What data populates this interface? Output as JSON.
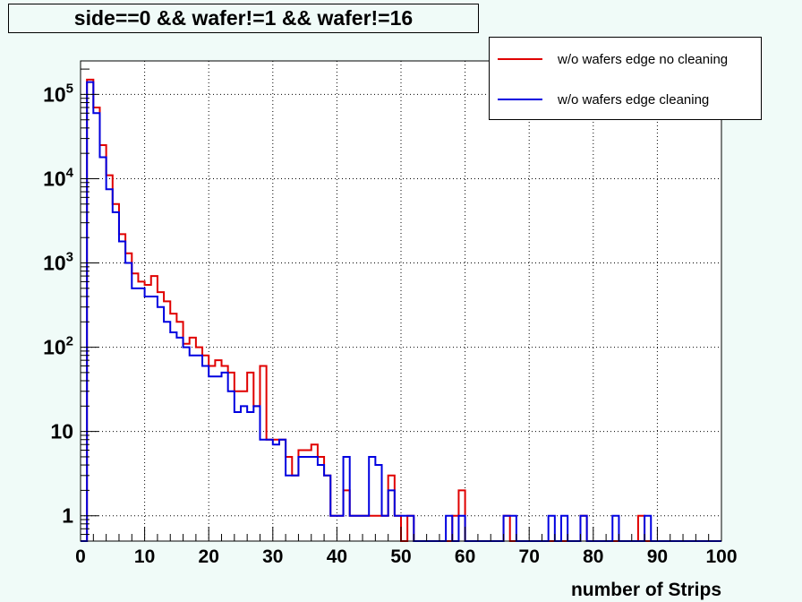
{
  "title": "side==0 && wafer!=1 && wafer!=16",
  "legend": {
    "entries": [
      {
        "label": "w/o wafers edge no cleaning",
        "color": "#e00000"
      },
      {
        "label": "w/o wafers edge cleaning",
        "color": "#0000e0"
      }
    ]
  },
  "chart_data": {
    "type": "line",
    "title": "side==0 && wafer!=1 && wafer!=16",
    "xlabel": "number of Strips",
    "ylabel": "",
    "xlim": [
      0,
      100
    ],
    "ylim": [
      0.5,
      250000
    ],
    "yscale": "log",
    "grid": true,
    "legend_position": "top-right",
    "x_ticks": [
      0,
      10,
      20,
      30,
      40,
      50,
      60,
      70,
      80,
      90,
      100
    ],
    "x_tick_labels": [
      "0",
      "10",
      "20",
      "30",
      "40",
      "50",
      "60",
      "70",
      "80",
      "90",
      "100"
    ],
    "y_ticks": [
      {
        "value": 1,
        "base": "1",
        "exp": ""
      },
      {
        "value": 10,
        "base": "10",
        "exp": ""
      },
      {
        "value": 100,
        "base": "10",
        "exp": "2"
      },
      {
        "value": 1000,
        "base": "10",
        "exp": "3"
      },
      {
        "value": 10000,
        "base": "10",
        "exp": "4"
      },
      {
        "value": 100000,
        "base": "10",
        "exp": "5"
      }
    ],
    "bin_edges": [
      0,
      1,
      2,
      3,
      4,
      5,
      6,
      7,
      8,
      9,
      10,
      11,
      12,
      13,
      14,
      15,
      16,
      17,
      18,
      19,
      20,
      21,
      22,
      23,
      24,
      25,
      26,
      27,
      28,
      29,
      30,
      31,
      32,
      33,
      34,
      35,
      36,
      37,
      38,
      39,
      40,
      41,
      42,
      43,
      44,
      45,
      46,
      47,
      48,
      49,
      50,
      51,
      52,
      53,
      54,
      55,
      56,
      57,
      58,
      59,
      60,
      61,
      62,
      63,
      64,
      65,
      66,
      67,
      68,
      69,
      70,
      71,
      72,
      73,
      74,
      75,
      76,
      77,
      78,
      79,
      80,
      81,
      82,
      83,
      84,
      85,
      86,
      87,
      88,
      89,
      90,
      91,
      92,
      93,
      94,
      95,
      96,
      97,
      98,
      99,
      100
    ],
    "series": [
      {
        "name": "w/o wafers edge no cleaning",
        "color": "#e00000",
        "values": [
          0,
          150000,
          70000,
          25000,
          11000,
          5000,
          2200,
          1300,
          750,
          600,
          550,
          700,
          450,
          350,
          250,
          200,
          110,
          130,
          100,
          80,
          60,
          70,
          60,
          50,
          30,
          30,
          50,
          20,
          60,
          8,
          8,
          8,
          5,
          3,
          6,
          6,
          7,
          5,
          3,
          1,
          1,
          2,
          1,
          1,
          1,
          1,
          1,
          1,
          3,
          1,
          0,
          1,
          0,
          0,
          0,
          0,
          0,
          0,
          1,
          2,
          0,
          0,
          0,
          0,
          0,
          0,
          1,
          0,
          0,
          0,
          0,
          0,
          0,
          0,
          0,
          0,
          0,
          0,
          1,
          0,
          0,
          0,
          0,
          0,
          0,
          0,
          0,
          1,
          0,
          0,
          0,
          0,
          0,
          0,
          0,
          0,
          0,
          0,
          0,
          0
        ]
      },
      {
        "name": "w/o wafers edge cleaning",
        "color": "#0000e0",
        "values": [
          0,
          140000,
          60000,
          18000,
          7500,
          4000,
          1800,
          1000,
          500,
          500,
          400,
          400,
          300,
          200,
          150,
          130,
          100,
          80,
          80,
          60,
          45,
          45,
          50,
          30,
          17,
          20,
          17,
          20,
          8,
          8,
          7,
          8,
          3,
          3,
          5,
          5,
          5,
          4,
          3,
          1,
          1,
          5,
          1,
          1,
          1,
          5,
          4,
          1,
          2,
          1,
          1,
          1,
          0,
          0,
          0,
          0,
          0,
          1,
          0,
          1,
          0,
          0,
          0,
          0,
          0,
          0,
          1,
          1,
          0,
          0,
          0,
          0,
          0,
          1,
          0,
          1,
          0,
          0,
          1,
          0,
          0,
          0,
          0,
          1,
          0,
          0,
          0,
          0,
          1,
          0,
          0,
          0,
          0,
          0,
          0,
          0,
          0,
          0,
          0,
          0
        ]
      }
    ]
  }
}
